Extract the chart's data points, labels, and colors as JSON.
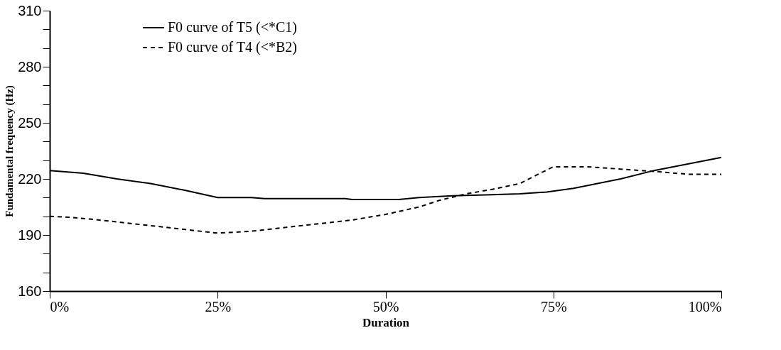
{
  "chart_data": {
    "type": "line",
    "xlabel": "Duration",
    "ylabel": "Fundamental frequency (Hz)",
    "xlim": [
      0,
      100
    ],
    "ylim": [
      160,
      310
    ],
    "xticks": [
      {
        "value": 0,
        "label": "0%"
      },
      {
        "value": 25,
        "label": "25%"
      },
      {
        "value": 50,
        "label": "50%"
      },
      {
        "value": 75,
        "label": "75%"
      },
      {
        "value": 100,
        "label": "100%"
      }
    ],
    "yticks": [
      160,
      {
        "value": 170,
        "label": null
      },
      {
        "value": 180,
        "label": null
      },
      190,
      {
        "value": 200,
        "label": null
      },
      {
        "value": 210,
        "label": null
      },
      220,
      {
        "value": 230,
        "label": null
      },
      {
        "value": 240,
        "label": null
      },
      250,
      {
        "value": 260,
        "label": null
      },
      {
        "value": 270,
        "label": null
      },
      280,
      {
        "value": 290,
        "label": null
      },
      {
        "value": 300,
        "label": null
      },
      310
    ],
    "grid": false,
    "legend": "top left",
    "marker": "none",
    "series": [
      {
        "name": "F0 curve of T5 (<*C1)",
        "color": "#000000",
        "line_style": "solid",
        "x": [
          0,
          5,
          10,
          15,
          20,
          25,
          30,
          32,
          44,
          45,
          52,
          55,
          60,
          65,
          70,
          74,
          78,
          85,
          90,
          95,
          100
        ],
        "values": [
          224.5,
          223,
          220,
          217.5,
          214,
          210,
          210,
          209.5,
          209.5,
          209,
          209,
          210,
          211,
          211.5,
          212,
          213,
          215,
          220,
          224.5,
          228,
          231.5
        ]
      },
      {
        "name": "F0 curve of T4 (<*B2)",
        "color": "#000000",
        "line_style": "dashed",
        "x": [
          0,
          3,
          6,
          10,
          15,
          20,
          25,
          30,
          35,
          40,
          45,
          50,
          55,
          58,
          62,
          66,
          70,
          73,
          75,
          80,
          86,
          90,
          95,
          100
        ],
        "values": [
          200,
          199.5,
          198.5,
          197,
          195,
          193,
          191,
          192,
          194,
          196,
          198,
          201,
          205,
          208.5,
          212,
          214.5,
          217.5,
          223,
          226.5,
          226.5,
          225,
          224,
          222.5,
          222.5
        ]
      }
    ]
  }
}
